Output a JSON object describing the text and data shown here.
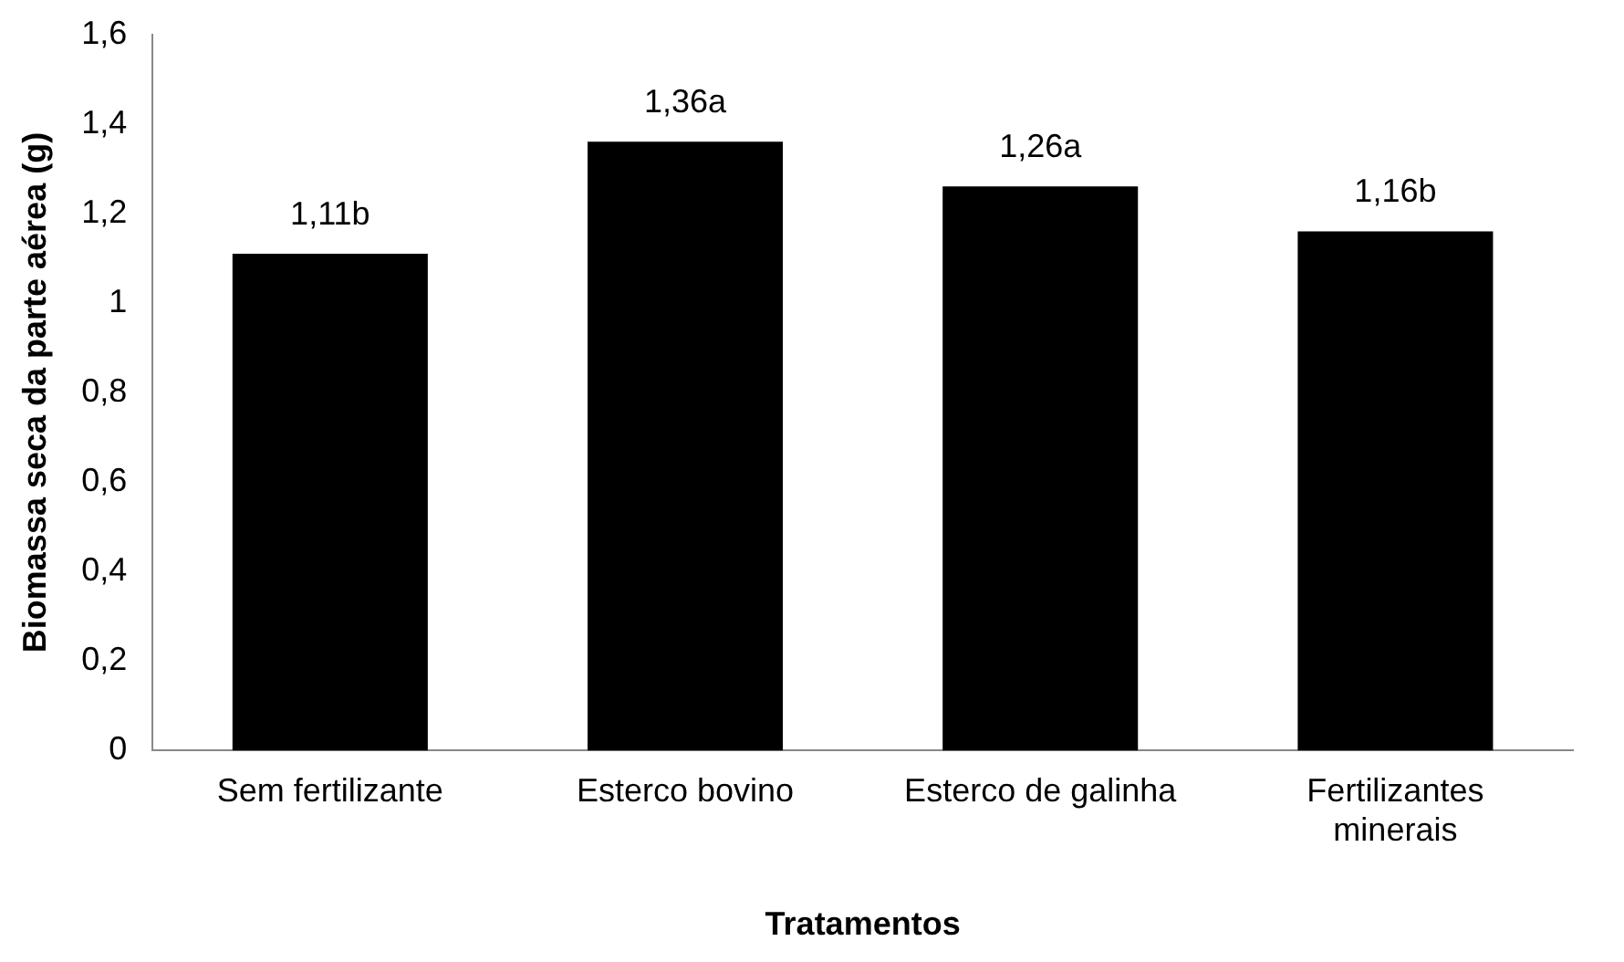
{
  "chart_data": {
    "type": "bar",
    "xlabel": "Tratamentos",
    "ylabel": "Biomassa seca da parte aérea (g)",
    "categories": [
      "Sem fertilizante",
      "Esterco bovino",
      "Esterco de galinha",
      "Fertilizantes minerais"
    ],
    "values": [
      1.11,
      1.36,
      1.26,
      1.16
    ],
    "color": "#000000",
    "value_labels": [
      "1,11b",
      "1,36a",
      "1,26a",
      "1,16b"
    ],
    "ylim": [
      0,
      1.6
    ],
    "yticks": [
      0,
      {
        "value": 0.2,
        "label": "0,2"
      },
      {
        "value": 0.4,
        "label": "0,4"
      },
      {
        "value": 0.6,
        "label": "0,6"
      },
      {
        "value": 0.8,
        "label": "0,8"
      },
      1,
      {
        "value": 1.2,
        "label": "1,2"
      },
      {
        "value": 1.4,
        "label": "1,4"
      },
      {
        "value": 1.6,
        "label": "1,6"
      }
    ],
    "grid": false,
    "legend": false
  }
}
